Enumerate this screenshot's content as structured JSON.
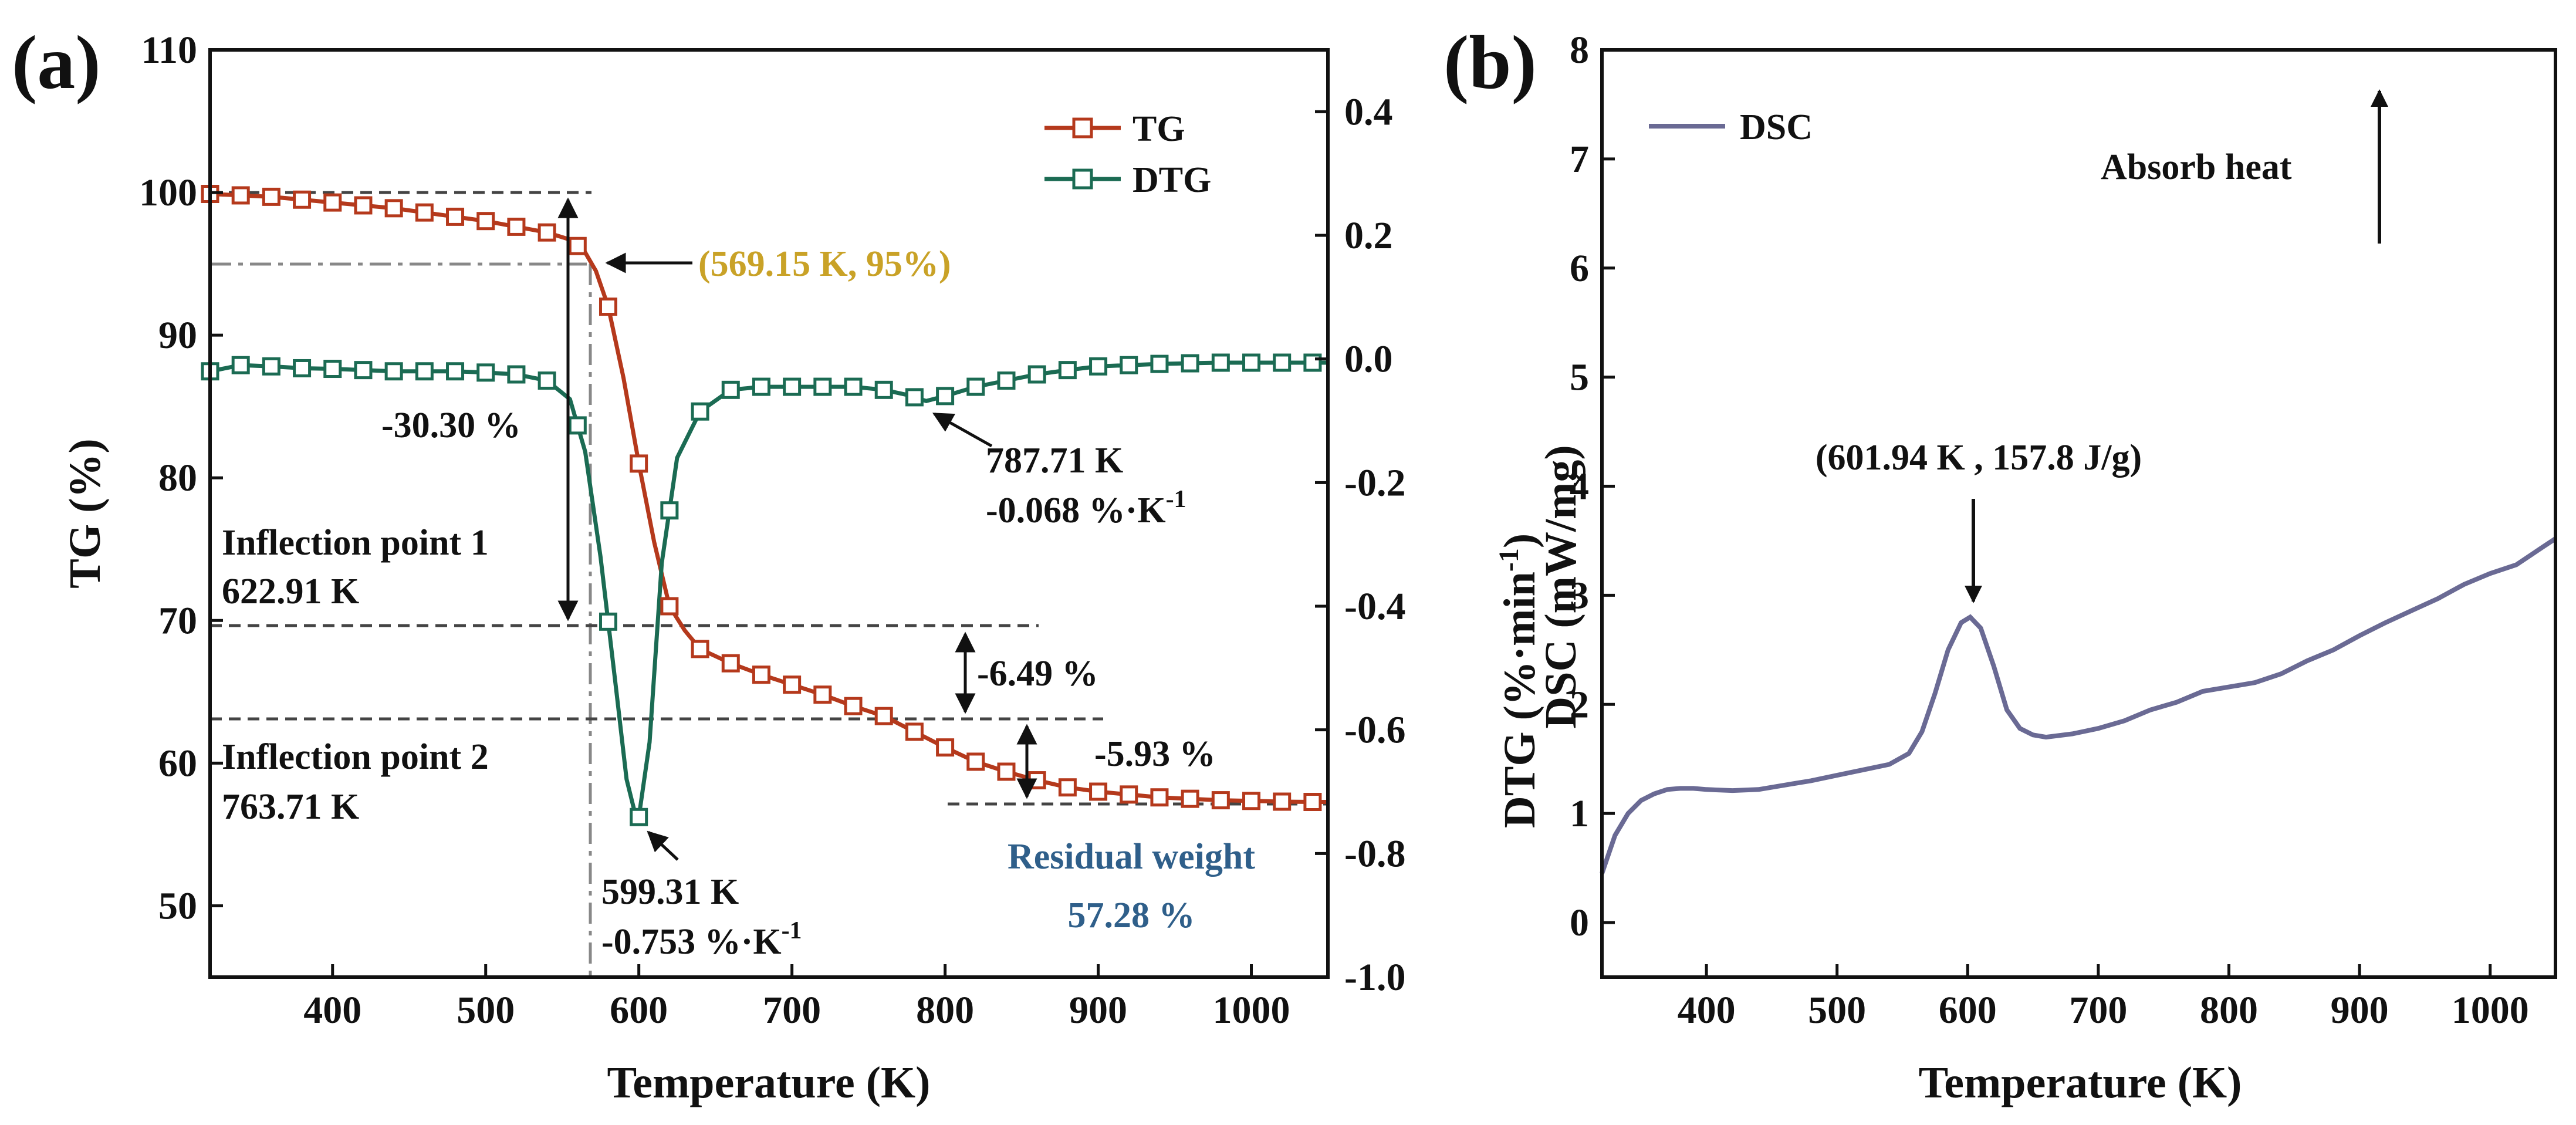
{
  "chart_data": [
    {
      "panel": "(a)",
      "type": "line",
      "xlabel": "Temperature (K)",
      "ylabel": "TG (%)",
      "y2label": "DTG (%·min⁻¹)",
      "xlim": [
        320,
        1050
      ],
      "ylim": [
        45,
        110
      ],
      "y2lim": [
        -1.0,
        0.5
      ],
      "xticks": [
        400,
        500,
        600,
        700,
        800,
        900,
        1000
      ],
      "yticks": [
        50,
        60,
        70,
        80,
        90,
        100,
        110
      ],
      "y2ticks": [
        -1.0,
        -0.8,
        -0.6,
        -0.4,
        -0.2,
        0.0,
        0.2,
        0.4
      ],
      "y2tick_labels": [
        "-1.0",
        "-0.8",
        "-0.6",
        "-0.4",
        "-0.2",
        "0.0",
        "0.2",
        "0.4"
      ],
      "legend": [
        "TG",
        "DTG"
      ],
      "legend_position": "top-right",
      "series": [
        {
          "name": "TG",
          "axis": "left",
          "color": "#b5391c",
          "x": [
            320,
            340,
            360,
            380,
            400,
            420,
            440,
            460,
            480,
            500,
            520,
            540,
            555,
            565,
            572,
            580,
            590,
            600,
            610,
            620,
            630,
            640,
            660,
            680,
            700,
            720,
            740,
            760,
            780,
            800,
            820,
            840,
            860,
            880,
            900,
            920,
            940,
            960,
            980,
            1000,
            1020,
            1040,
            1050
          ],
          "values": [
            99.9,
            99.8,
            99.7,
            99.5,
            99.3,
            99.1,
            98.9,
            98.6,
            98.3,
            98.0,
            97.6,
            97.2,
            96.7,
            95.8,
            94.5,
            92.0,
            87.0,
            81.0,
            75.5,
            71.0,
            69.3,
            68.0,
            67.0,
            66.2,
            65.5,
            64.8,
            64.0,
            63.3,
            62.2,
            61.1,
            60.1,
            59.4,
            58.8,
            58.3,
            58.0,
            57.8,
            57.6,
            57.5,
            57.4,
            57.35,
            57.3,
            57.28,
            57.28
          ]
        },
        {
          "name": "DTG",
          "axis": "right",
          "color": "#1b6b53",
          "x": [
            320,
            340,
            360,
            380,
            400,
            420,
            440,
            460,
            480,
            500,
            520,
            540,
            555,
            565,
            575,
            585,
            592,
            599.31,
            607,
            615,
            625,
            640,
            660,
            680,
            700,
            720,
            740,
            760,
            775,
            787.71,
            800,
            820,
            840,
            860,
            880,
            900,
            920,
            940,
            960,
            980,
            1000,
            1020,
            1040,
            1050
          ],
          "values": [
            -0.02,
            -0.01,
            -0.012,
            -0.015,
            -0.016,
            -0.018,
            -0.02,
            -0.02,
            -0.02,
            -0.022,
            -0.025,
            -0.035,
            -0.065,
            -0.15,
            -0.32,
            -0.53,
            -0.68,
            -0.753,
            -0.62,
            -0.33,
            -0.16,
            -0.085,
            -0.05,
            -0.045,
            -0.045,
            -0.045,
            -0.045,
            -0.05,
            -0.058,
            -0.068,
            -0.06,
            -0.045,
            -0.035,
            -0.025,
            -0.018,
            -0.012,
            -0.01,
            -0.008,
            -0.007,
            -0.006,
            -0.006,
            -0.006,
            -0.006,
            -0.006
          ]
        }
      ],
      "annotations": {
        "onset": "(569.15 K, 95%)",
        "mass_loss_1": "-30.30 %",
        "mass_loss_2": "-6.49 %",
        "mass_loss_3": "-5.93 %",
        "inflection_1_title": "Inflection point 1",
        "inflection_1_value": "622.91 K",
        "inflection_2_title": "Inflection point 2",
        "inflection_2_value": "763.71 K",
        "peak_1_temp": "787.71 K",
        "peak_1_rate": "-0.068 %·K",
        "peak_2_temp": "599.31 K",
        "peak_2_rate": "-0.753 %·K",
        "rate_exponent": "-1",
        "residual_title": "Residual weight",
        "residual_value": "57.28 %"
      },
      "colors": {
        "onset_label": "#c9a227",
        "residual_label": "#2f5f8a"
      }
    },
    {
      "panel": "(b)",
      "type": "line",
      "xlabel": "Temperature (K)",
      "ylabel": "DSC (mW/mg)",
      "xlim": [
        320,
        1050
      ],
      "ylim": [
        -0.5,
        8
      ],
      "xticks": [
        400,
        500,
        600,
        700,
        800,
        900,
        1000
      ],
      "yticks": [
        0,
        1,
        2,
        3,
        4,
        5,
        6,
        7,
        8
      ],
      "legend": [
        "DSC"
      ],
      "legend_position": "top-left",
      "series": [
        {
          "name": "DSC",
          "color": "#6a6a94",
          "x": [
            320,
            330,
            340,
            350,
            360,
            370,
            380,
            390,
            400,
            420,
            440,
            460,
            480,
            500,
            520,
            540,
            555,
            565,
            575,
            585,
            595,
            601.94,
            610,
            620,
            630,
            640,
            650,
            660,
            680,
            700,
            720,
            740,
            760,
            780,
            800,
            820,
            840,
            860,
            880,
            900,
            920,
            940,
            960,
            980,
            1000,
            1020,
            1040,
            1050
          ],
          "values": [
            0.45,
            0.8,
            1.0,
            1.12,
            1.18,
            1.22,
            1.23,
            1.23,
            1.22,
            1.21,
            1.22,
            1.26,
            1.3,
            1.35,
            1.4,
            1.45,
            1.55,
            1.75,
            2.1,
            2.5,
            2.75,
            2.8,
            2.7,
            2.35,
            1.95,
            1.78,
            1.72,
            1.7,
            1.73,
            1.78,
            1.85,
            1.95,
            2.02,
            2.12,
            2.16,
            2.2,
            2.28,
            2.4,
            2.5,
            2.63,
            2.75,
            2.86,
            2.97,
            3.1,
            3.2,
            3.28,
            3.44,
            3.52
          ]
        }
      ],
      "annotations": {
        "peak": "(601.94 K , 157.8 J/g)",
        "absorb": "Absorb heat"
      }
    }
  ]
}
